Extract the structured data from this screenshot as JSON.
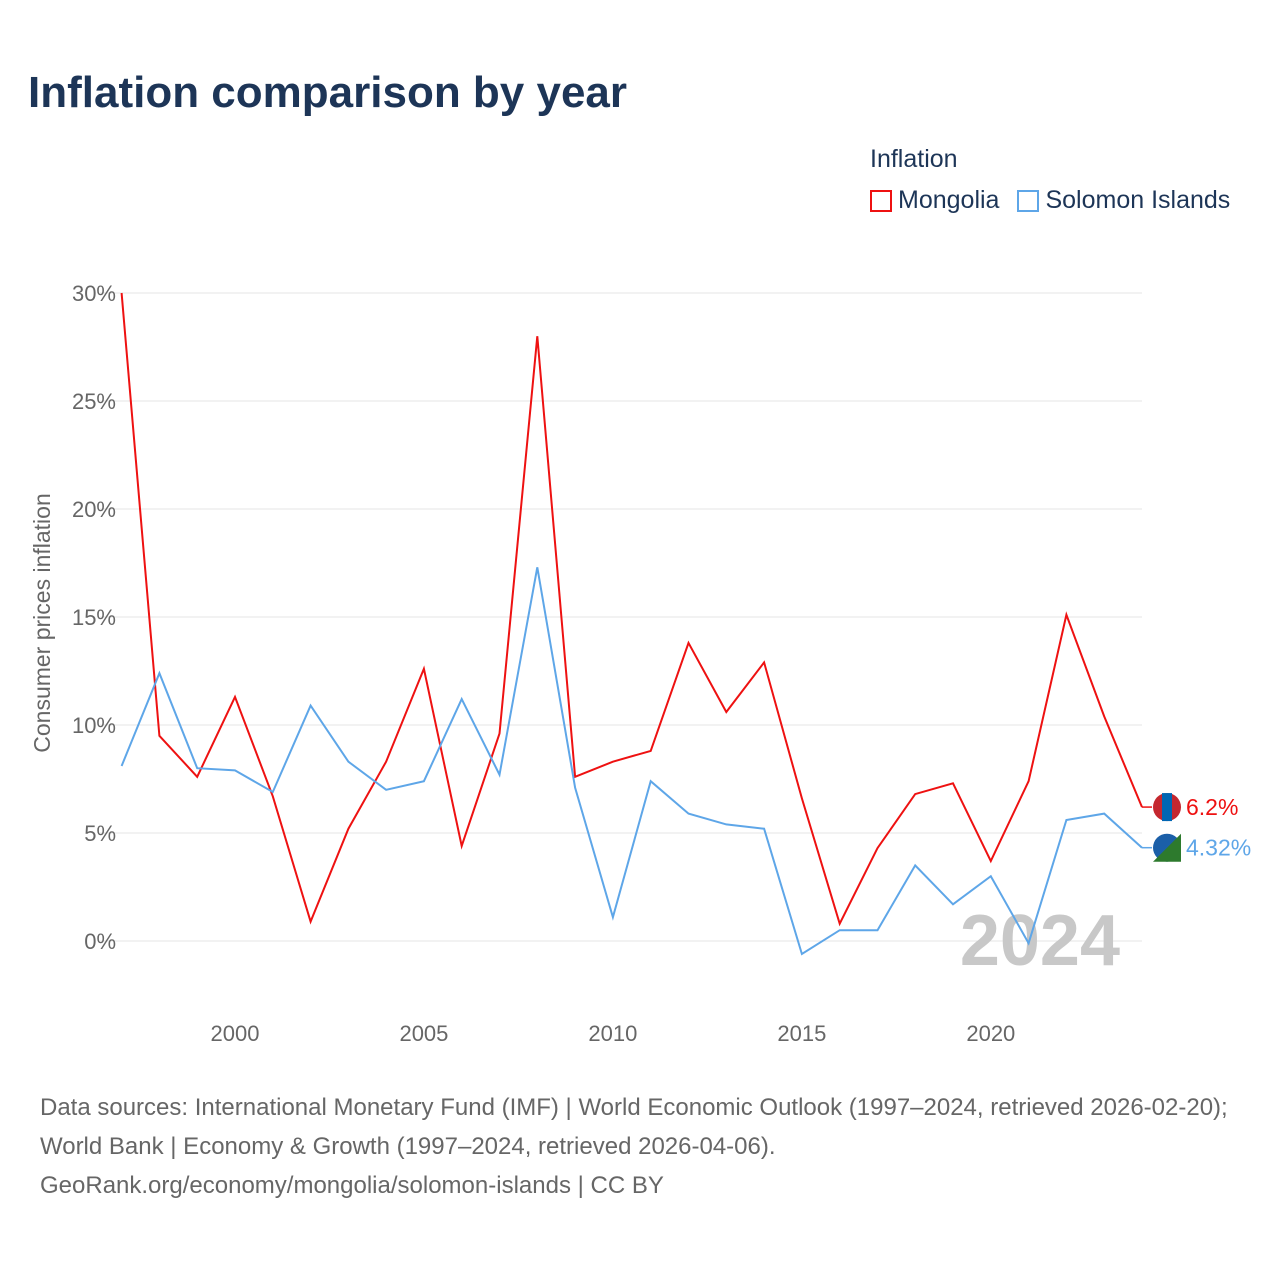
{
  "chart_data": {
    "type": "line",
    "title": "Inflation comparison by year",
    "ylabel": "Consumer prices inflation",
    "xlabel": "",
    "legend_title": "Inflation",
    "legend_placement": "top-right",
    "ylim": [
      -3,
      31
    ],
    "xlim": [
      1997,
      2024
    ],
    "yticks": [
      0,
      5,
      10,
      15,
      20,
      25,
      30
    ],
    "ytick_labels": [
      "0%",
      "5%",
      "10%",
      "15%",
      "20%",
      "25%",
      "30%"
    ],
    "xticks": [
      2000,
      2005,
      2010,
      2015,
      2020
    ],
    "xtick_labels": [
      "2000",
      "2005",
      "2010",
      "2015",
      "2020"
    ],
    "grid": true,
    "year_watermark": "2024",
    "x": [
      1997,
      1998,
      1999,
      2000,
      2001,
      2002,
      2003,
      2004,
      2005,
      2006,
      2007,
      2008,
      2009,
      2010,
      2011,
      2012,
      2013,
      2014,
      2015,
      2016,
      2017,
      2018,
      2019,
      2020,
      2021,
      2022,
      2023,
      2024
    ],
    "series": [
      {
        "name": "Mongolia",
        "color": "#ee1111",
        "end_label": "6.2%",
        "values": [
          30.0,
          9.5,
          7.6,
          11.3,
          6.7,
          0.9,
          5.2,
          8.3,
          12.6,
          4.4,
          9.6,
          28.0,
          7.6,
          8.3,
          8.8,
          13.8,
          10.6,
          12.9,
          6.6,
          0.8,
          4.3,
          6.8,
          7.3,
          3.7,
          7.4,
          15.1,
          10.4,
          6.2
        ]
      },
      {
        "name": "Solomon Islands",
        "color": "#5ea6e8",
        "end_label": "4.32%",
        "values": [
          8.1,
          12.4,
          8.0,
          7.9,
          6.9,
          10.9,
          8.3,
          7.0,
          7.4,
          11.2,
          7.7,
          17.3,
          7.1,
          1.1,
          7.4,
          5.9,
          5.4,
          5.2,
          -0.6,
          0.5,
          0.5,
          3.5,
          1.7,
          3.0,
          -0.1,
          5.6,
          5.9,
          4.32
        ]
      }
    ]
  },
  "source_lines": [
    "Data sources: International Monetary Fund (IMF) | World Economic Outlook (1997–2024, retrieved 2026-02-20); World Bank | Economy & Growth (1997–2024, retrieved 2026-04-06).",
    "GeoRank.org/economy/mongolia/solomon-islands | CC BY"
  ]
}
